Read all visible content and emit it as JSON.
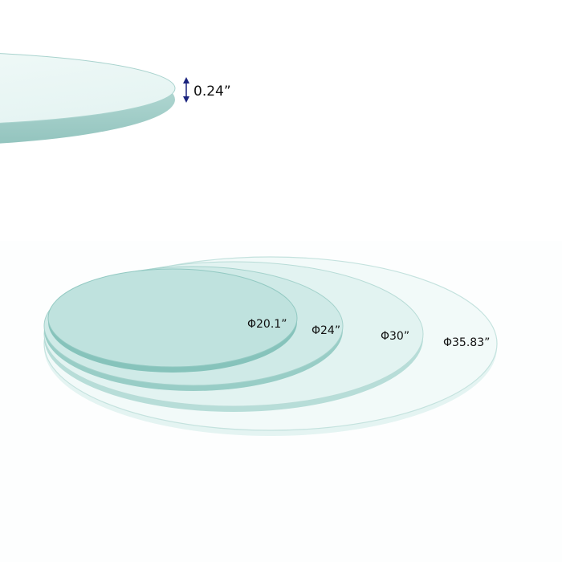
{
  "thickness_label": "0.24”",
  "diameters": [
    {
      "label": "Φ35.83”"
    },
    {
      "label": "Φ30”"
    },
    {
      "label": "Φ24”"
    },
    {
      "label": "Φ20.1”"
    }
  ],
  "colors": {
    "glass_top": "#cfe9e6",
    "glass_edge": "#8fc9c2",
    "arrow": "#1a237e"
  }
}
